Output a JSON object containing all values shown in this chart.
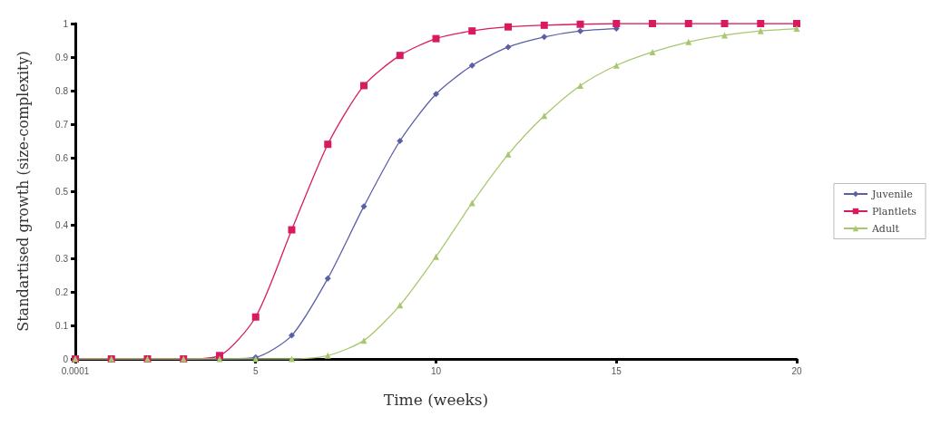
{
  "chart_data": {
    "type": "line",
    "xlabel": "Time (weeks)",
    "ylabel": "Standartised growth (size-complexity)",
    "x": [
      0.0001,
      1,
      2,
      3,
      4,
      5,
      6,
      7,
      8,
      9,
      10,
      11,
      12,
      13,
      14,
      15,
      16,
      17,
      18,
      19,
      20
    ],
    "series": [
      {
        "name": "Juvenile",
        "color": "#5a5fa8",
        "marker": "diamond",
        "values": [
          null,
          null,
          null,
          0,
          0,
          0.005,
          0.07,
          0.24,
          0.455,
          0.65,
          0.79,
          0.875,
          0.93,
          0.96,
          0.978,
          0.985,
          null,
          null,
          null,
          null,
          null
        ]
      },
      {
        "name": "Plantlets",
        "color": "#d81b60",
        "marker": "square",
        "values": [
          0,
          0,
          0,
          0,
          0.01,
          0.125,
          0.385,
          0.64,
          0.815,
          0.905,
          0.955,
          0.978,
          0.99,
          0.995,
          0.998,
          1,
          1,
          1,
          1,
          1,
          1
        ]
      },
      {
        "name": "Adult",
        "color": "#a8c870",
        "marker": "triangle",
        "values": [
          0,
          0,
          0,
          0,
          0,
          0,
          0,
          0.01,
          0.055,
          0.16,
          0.305,
          0.465,
          0.61,
          0.725,
          0.815,
          0.875,
          0.915,
          0.945,
          0.965,
          0.978,
          0.985
        ]
      }
    ],
    "xlim": [
      0.0001,
      20
    ],
    "xticks": [
      {
        "value": 0.0001,
        "label": "0.0001"
      },
      5,
      10,
      15,
      20
    ],
    "ylim": [
      0,
      1
    ],
    "yticks": [
      0,
      0.1,
      0.2,
      0.3,
      0.4,
      0.5,
      0.6,
      0.7,
      0.8,
      0.9,
      1
    ],
    "grid": false,
    "legend": "right"
  }
}
